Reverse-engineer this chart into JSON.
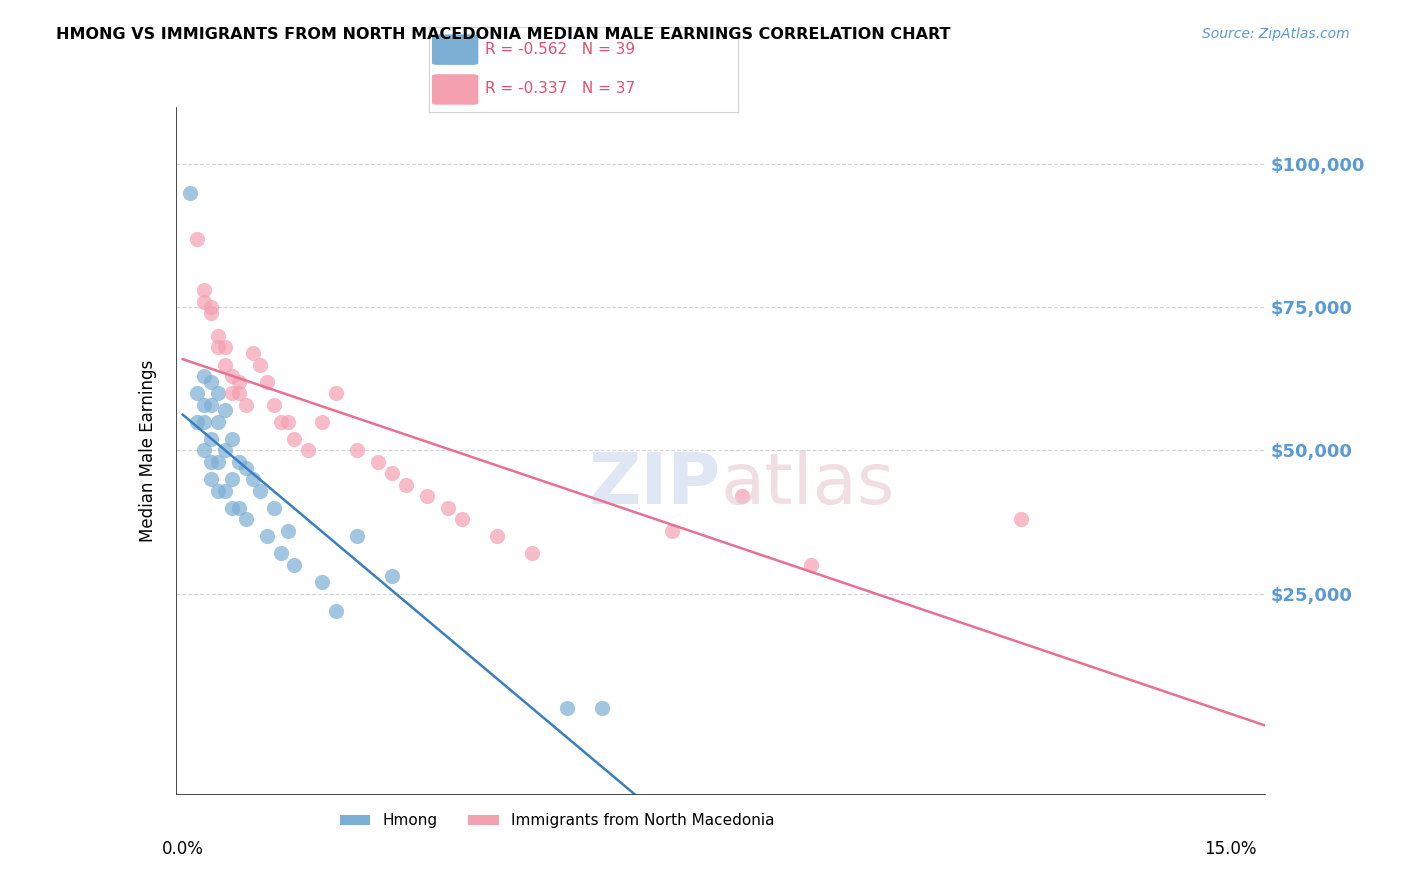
{
  "title": "HMONG VS IMMIGRANTS FROM NORTH MACEDONIA MEDIAN MALE EARNINGS CORRELATION CHART",
  "source": "Source: ZipAtlas.com",
  "ylabel": "Median Male Earnings",
  "ytick_labels": [
    "$25,000",
    "$50,000",
    "$75,000",
    "$100,000"
  ],
  "ytick_values": [
    25000,
    50000,
    75000,
    100000
  ],
  "ymax": 110000,
  "ymin": -10000,
  "xmin": -0.001,
  "xmax": 0.155,
  "hmong_color": "#7bafd4",
  "macedonia_color": "#f4a0b0",
  "hmong_line_color": "#3a7fc1",
  "macedonia_line_color": "#e87090",
  "legend_r_hmong": "R = -0.562",
  "legend_n_hmong": "N = 39",
  "legend_r_macedonia": "R = -0.337",
  "legend_n_macedonia": "N = 37",
  "hmong_x": [
    0.001,
    0.002,
    0.002,
    0.003,
    0.003,
    0.003,
    0.003,
    0.004,
    0.004,
    0.004,
    0.004,
    0.004,
    0.005,
    0.005,
    0.005,
    0.005,
    0.006,
    0.006,
    0.006,
    0.007,
    0.007,
    0.007,
    0.008,
    0.008,
    0.009,
    0.009,
    0.01,
    0.011,
    0.012,
    0.013,
    0.014,
    0.015,
    0.016,
    0.02,
    0.022,
    0.025,
    0.03,
    0.055,
    0.06
  ],
  "hmong_y": [
    95000,
    60000,
    55000,
    63000,
    58000,
    55000,
    50000,
    62000,
    58000,
    52000,
    48000,
    45000,
    60000,
    55000,
    48000,
    43000,
    57000,
    50000,
    43000,
    52000,
    45000,
    40000,
    48000,
    40000,
    47000,
    38000,
    45000,
    43000,
    35000,
    40000,
    32000,
    36000,
    30000,
    27000,
    22000,
    35000,
    28000,
    5000,
    5000
  ],
  "macedonia_x": [
    0.002,
    0.003,
    0.003,
    0.004,
    0.004,
    0.005,
    0.005,
    0.006,
    0.006,
    0.007,
    0.007,
    0.008,
    0.008,
    0.009,
    0.01,
    0.011,
    0.012,
    0.013,
    0.014,
    0.015,
    0.016,
    0.018,
    0.02,
    0.022,
    0.025,
    0.028,
    0.03,
    0.032,
    0.035,
    0.038,
    0.04,
    0.045,
    0.05,
    0.07,
    0.08,
    0.09,
    0.12
  ],
  "macedonia_y": [
    87000,
    78000,
    76000,
    75000,
    74000,
    70000,
    68000,
    68000,
    65000,
    63000,
    60000,
    62000,
    60000,
    58000,
    67000,
    65000,
    62000,
    58000,
    55000,
    55000,
    52000,
    50000,
    55000,
    60000,
    50000,
    48000,
    46000,
    44000,
    42000,
    40000,
    38000,
    35000,
    32000,
    36000,
    42000,
    30000,
    38000
  ]
}
